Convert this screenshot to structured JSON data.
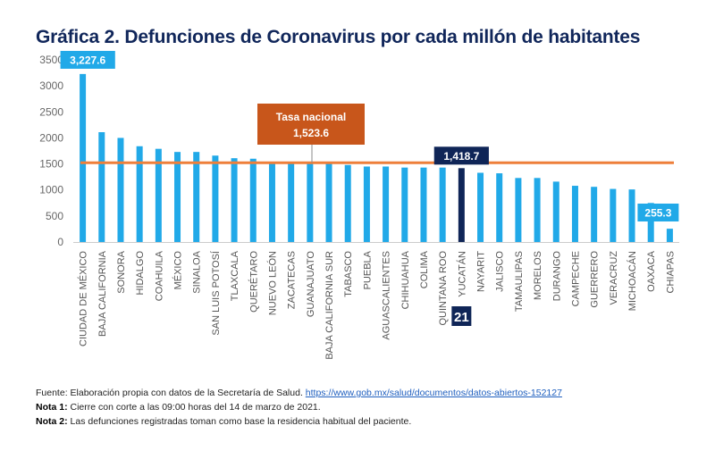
{
  "title": "Gráfica 2. Defunciones de Coronavirus por cada millón de habitantes",
  "colors": {
    "bar": "#21a9e8",
    "highlight_bar": "#0f2557",
    "national_line": "#ee7f3a",
    "national_box": "#c8561b",
    "title": "#10265a",
    "axis_text": "#666666"
  },
  "chart_data": {
    "type": "bar",
    "title": "Gráfica 2. Defunciones de Coronavirus por cada millón de habitantes",
    "xlabel": "",
    "ylabel": "",
    "ylim": [
      0,
      3500
    ],
    "yticks": [
      0,
      500,
      1000,
      1500,
      2000,
      2500,
      3000,
      3500
    ],
    "grid": false,
    "categories": [
      "CIUDAD DE MÉXICO",
      "BAJA CALIFORNIA",
      "SONORA",
      "HIDALGO",
      "COAHUILA",
      "MÉXICO",
      "SINALOA",
      "SAN LUIS POTOSÍ",
      "TLAXCALA",
      "QUERÉTARO",
      "NUEVO LEÓN",
      "ZACATECAS",
      "GUANAJUATO",
      "BAJA CALIFORNIA SUR",
      "TABASCO",
      "PUEBLA",
      "AGUASCALIENTES",
      "CHIHUAHUA",
      "COLIMA",
      "QUINTANA ROO",
      "YUCATÁN",
      "NAYARIT",
      "JALISCO",
      "TAMAULIPAS",
      "MORELOS",
      "DURANGO",
      "CAMPECHE",
      "GUERRERO",
      "VERACRUZ",
      "MICHOACÁN",
      "OAXACA",
      "CHIAPAS"
    ],
    "values": [
      3227.6,
      2110,
      2000,
      1840,
      1790,
      1730,
      1730,
      1660,
      1610,
      1600,
      1520,
      1520,
      1520,
      1520,
      1480,
      1450,
      1450,
      1430,
      1430,
      1430,
      1418.7,
      1330,
      1320,
      1230,
      1230,
      1160,
      1080,
      1060,
      1020,
      1010,
      750,
      255.3
    ],
    "highlight_index": 20,
    "highlight_rank_label": "21",
    "reference_line": {
      "label": "Tasa nacional",
      "value": 1523.6,
      "value_label": "1,523.6"
    },
    "data_labels": [
      {
        "index": 0,
        "text": "3,227.6"
      },
      {
        "index": 20,
        "text": "1,418.7"
      },
      {
        "index": 31,
        "text": "255.3"
      }
    ]
  },
  "notes": {
    "source_prefix": "Fuente: Elaboración propia con datos de la Secretaría de Salud. ",
    "source_link": "https://www.gob.mx/salud/documentos/datos-abiertos-152127",
    "note1_label": "Nota 1:",
    "note1_text": " Cierre con corte a las 09:00 horas del 14 de marzo de 2021.",
    "note2_label": "Nota 2:",
    "note2_text": " Las defunciones registradas toman como base la residencia habitual del paciente."
  }
}
